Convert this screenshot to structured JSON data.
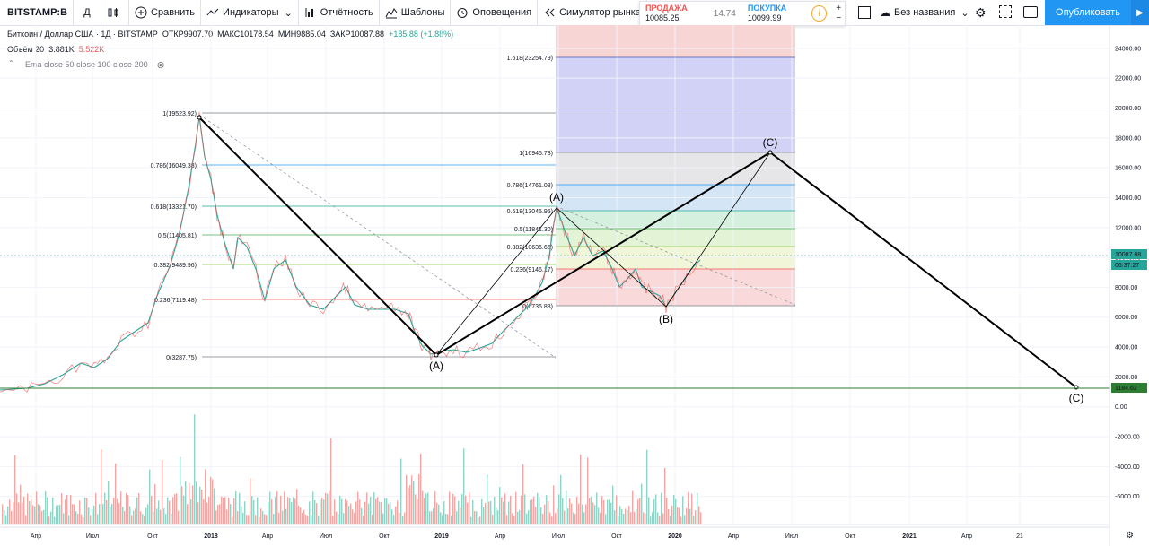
{
  "toolbar": {
    "symbol": "BITSTAMP:B",
    "interval": "Д",
    "compare": "Сравнить",
    "indicators": "Индикаторы",
    "financials": "Отчётность",
    "templates": "Шаблоны",
    "alerts": "Оповещения",
    "replay": "Симулятор рынка",
    "layout_name": "Без названия",
    "publish": "Опубликовать"
  },
  "trade": {
    "sell_label": "ПРОДАЖА",
    "sell_price": "10085.25",
    "spread": "14.74",
    "buy_label": "ПОКУПКА",
    "buy_price": "10099.99"
  },
  "legend": {
    "title": "Биткоин / Доллар США · 1Д · BITSTAMP",
    "open": "ОТКР9907.70",
    "high": "МАКС10178.54",
    "low": "МИН9885.04",
    "close": "ЗАКР10087.88",
    "change": "+185.88 (+1.88%)",
    "volume_label": "Объём 20",
    "volume_v1": "3.881K",
    "volume_v2": "5.522K",
    "ema": "Ema close 50 close 100 close 200"
  },
  "chart_data": {
    "type": "line",
    "title": "Биткоин / Доллар США · 1Д · BITSTAMP",
    "ylim": [
      -7000,
      25000
    ],
    "y_ticks": [
      "24000.00",
      "22000.00",
      "20000.00",
      "18000.00",
      "16000.00",
      "14000.00",
      "12000.00",
      "10000.00",
      "8000.00",
      "6000.00",
      "4000.00",
      "2000.00",
      "0.00",
      "-2000.00",
      "-4000.00",
      "-6000.00"
    ],
    "x_ticks": [
      "Апр",
      "Июл",
      "Окт",
      "2018",
      "Апр",
      "Июл",
      "Окт",
      "2019",
      "Апр",
      "Июл",
      "Окт",
      "2020",
      "Апр",
      "Июл",
      "Окт",
      "2021",
      "Апр",
      "21"
    ],
    "last_price": "10087.88",
    "countdown": "06:37:27",
    "hline_price": "1184.62",
    "fib1": [
      {
        "label": "1(19523.92)",
        "color": "#787b86"
      },
      {
        "label": "0.786(16049.38)",
        "color": "#2196f3"
      },
      {
        "label": "0.618(13321.70)",
        "color": "#26a69a"
      },
      {
        "label": "0.5(11405.81)",
        "color": "#4caf50"
      },
      {
        "label": "0.382(9489.96)",
        "color": "#8bc34a"
      },
      {
        "label": "0.236(7119.48)",
        "color": "#ef5350"
      },
      {
        "label": "0(3287.75)",
        "color": "#787b86"
      }
    ],
    "fib2": [
      {
        "label": "1.618(23254.79)",
        "color": "#3f51b5"
      },
      {
        "label": "1(16945.73)",
        "color": "#787b86"
      },
      {
        "label": "0.786(14761.03)",
        "color": "#2196f3"
      },
      {
        "label": "0.618(13045.95)",
        "color": "#26a69a"
      },
      {
        "label": "0.5(11841.30)",
        "color": "#4caf50"
      },
      {
        "label": "0.382(10636.66)",
        "color": "#8bc34a"
      },
      {
        "label": "0.236(9146.17)",
        "color": "#ef5350"
      },
      {
        "label": "0(6736.88)",
        "color": "#787b86"
      }
    ],
    "wave_labels": [
      "(A)",
      "(A)",
      "(B)",
      "(C)",
      "(C)"
    ],
    "wave_B_top": "(B)"
  }
}
